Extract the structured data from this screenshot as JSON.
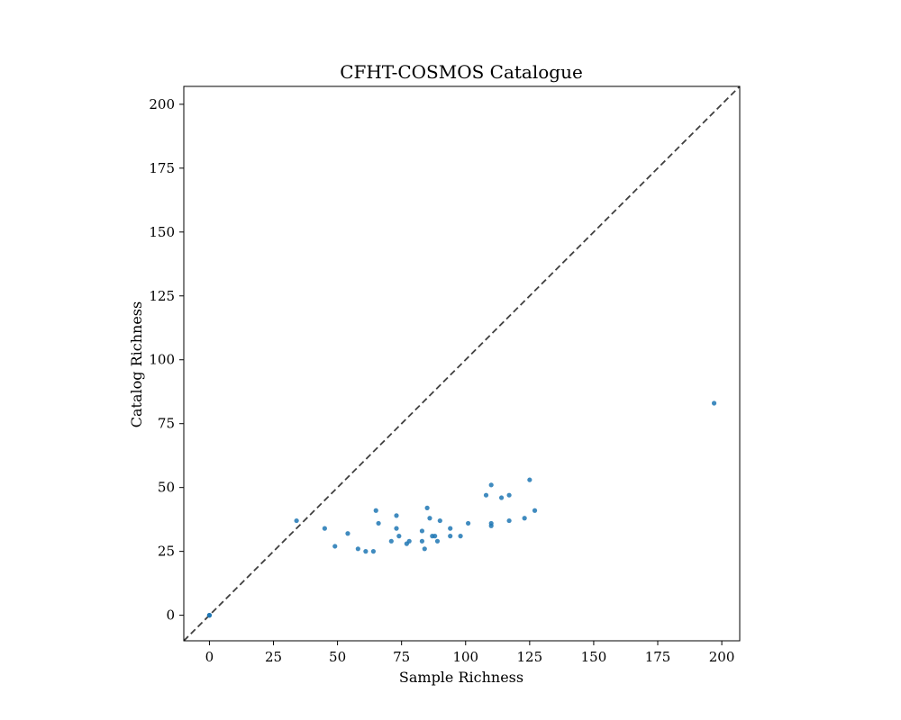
{
  "chart_data": {
    "type": "scatter",
    "title": "CFHT-COSMOS Catalogue",
    "xlabel": "Sample Richness",
    "ylabel": "Catalog Richness",
    "xlim": [
      -10,
      207
    ],
    "ylim": [
      -10,
      207
    ],
    "xticks": [
      0,
      25,
      50,
      75,
      100,
      125,
      150,
      175,
      200
    ],
    "yticks": [
      0,
      25,
      50,
      75,
      100,
      125,
      150,
      175,
      200
    ],
    "reference_line": {
      "style": "dashed",
      "slope": 1,
      "intercept": 0,
      "color": "#404040"
    },
    "grid": false,
    "series": [
      {
        "color": "#1f77b4",
        "points": [
          [
            0,
            0
          ],
          [
            0,
            0
          ],
          [
            0,
            0
          ],
          [
            34,
            37
          ],
          [
            45,
            34
          ],
          [
            49,
            27
          ],
          [
            54,
            32
          ],
          [
            58,
            26
          ],
          [
            61,
            25
          ],
          [
            64,
            25
          ],
          [
            65,
            41
          ],
          [
            66,
            36
          ],
          [
            71,
            29
          ],
          [
            73,
            39
          ],
          [
            73,
            34
          ],
          [
            74,
            31
          ],
          [
            77,
            28
          ],
          [
            78,
            29
          ],
          [
            83,
            29
          ],
          [
            83,
            33
          ],
          [
            84,
            26
          ],
          [
            85,
            42
          ],
          [
            86,
            38
          ],
          [
            87,
            31
          ],
          [
            88,
            31
          ],
          [
            89,
            29
          ],
          [
            90,
            37
          ],
          [
            94,
            31
          ],
          [
            94,
            34
          ],
          [
            98,
            31
          ],
          [
            101,
            36
          ],
          [
            108,
            47
          ],
          [
            110,
            51
          ],
          [
            110,
            35
          ],
          [
            110,
            36
          ],
          [
            114,
            46
          ],
          [
            117,
            47
          ],
          [
            117,
            37
          ],
          [
            123,
            38
          ],
          [
            125,
            53
          ],
          [
            127,
            41
          ],
          [
            197,
            83
          ]
        ]
      }
    ]
  }
}
